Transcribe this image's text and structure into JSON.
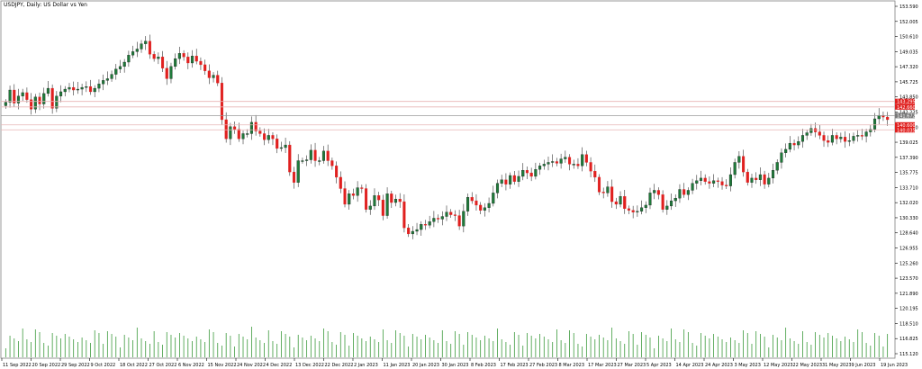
{
  "chart_data": {
    "type": "candlestick",
    "title": "USDJPY, Daily:  US Dollar vs Yen",
    "ylim": [
      115.5,
      154.2
    ],
    "y_ticks": [
      "153.590",
      "152.005",
      "150.610",
      "149.035",
      "147.320",
      "145.725",
      "143.850",
      "142.225",
      "140.610",
      "139.025",
      "137.390",
      "135.775",
      "133.710",
      "132.020",
      "130.330",
      "128.640",
      "126.955",
      "125.260",
      "123.570",
      "121.890",
      "120.195",
      "118.510",
      "116.825",
      "115.120"
    ],
    "x_ticks": [
      "11 Sep 2022",
      "20 Sep 2022",
      "29 Sep 2022",
      "9 Oct 2022",
      "18 Oct 2022",
      "27 Oct 2022",
      "6 Nov 2022",
      "15 Nov 2022",
      "24 Nov 2022",
      "4 Dec 2022",
      "13 Dec 2022",
      "22 Dec 2022",
      "2 Jan 2023",
      "11 Jan 2023",
      "20 Jan 2023",
      "30 Jan 2023",
      "8 Feb 2023",
      "17 Feb 2023",
      "27 Feb 2023",
      "8 Mar 2023",
      "17 Mar 2023",
      "27 Mar 2023",
      "5 Apr 2023",
      "14 Apr 2023",
      "24 Apr 2023",
      "3 May 2023",
      "12 May 2023",
      "22 May 2023",
      "31 May 2023",
      "9 Jun 2023",
      "19 Jun 2023"
    ],
    "horizontal_lines": [
      {
        "price": 143.295,
        "label": "143.295",
        "color": "#e8b3b3"
      },
      {
        "price": 142.66,
        "label": "142.660",
        "color": "#e8b3b3"
      },
      {
        "price": 141.672,
        "label": "141.672",
        "color": "#9a9a9a"
      },
      {
        "price": 140.6,
        "label": "140.600",
        "color": "#e8b3b3"
      },
      {
        "price": 140.035,
        "label": "140.035",
        "color": "#e8b3b3"
      }
    ],
    "series_close": [
      143.2,
      144.6,
      143.1,
      143.9,
      144.3,
      143.5,
      142.4,
      143.8,
      143.0,
      144.2,
      144.8,
      142.5,
      143.9,
      144.4,
      144.7,
      144.9,
      144.6,
      144.7,
      144.9,
      145.0,
      144.4,
      144.8,
      145.3,
      145.7,
      145.9,
      146.4,
      147.0,
      147.3,
      147.8,
      148.6,
      149.0,
      149.3,
      149.9,
      150.2,
      148.7,
      148.2,
      148.4,
      147.1,
      145.9,
      147.3,
      148.2,
      148.8,
      148.4,
      147.7,
      148.5,
      147.9,
      147.5,
      146.8,
      146.0,
      146.3,
      145.4,
      141.2,
      139.0,
      140.4,
      140.1,
      139.0,
      139.6,
      139.6,
      140.9,
      139.9,
      139.6,
      138.9,
      139.4,
      139.0,
      137.9,
      138.0,
      138.3,
      135.2,
      134.0,
      136.5,
      136.5,
      136.6,
      137.7,
      136.5,
      136.5,
      137.6,
      136.5,
      135.9,
      134.6,
      133.3,
      131.5,
      132.7,
      132.5,
      133.4,
      133.3,
      130.9,
      131.3,
      132.5,
      132.0,
      130.2,
      132.7,
      131.7,
      132.1,
      131.8,
      128.8,
      128.1,
      128.4,
      128.6,
      129.2,
      129.1,
      129.5,
      129.9,
      129.8,
      130.1,
      130.6,
      130.3,
      130.2,
      129.0,
      130.7,
      132.3,
      131.9,
      131.4,
      130.8,
      131.1,
      131.6,
      132.8,
      133.9,
      134.3,
      133.8,
      134.8,
      134.1,
      134.7,
      135.4,
      135.1,
      134.7,
      135.5,
      135.9,
      136.1,
      136.3,
      136.4,
      136.2,
      136.7,
      136.9,
      136.1,
      136.1,
      135.9,
      137.2,
      136.3,
      135.3,
      134.6,
      132.9,
      132.8,
      133.5,
      131.8,
      131.5,
      132.4,
      131.0,
      130.8,
      130.6,
      130.7,
      131.1,
      131.4,
      132.8,
      133.1,
      132.6,
      130.9,
      131.3,
      131.9,
      132.2,
      133.2,
      132.6,
      133.1,
      133.9,
      134.2,
      134.5,
      134.1,
      133.9,
      134.2,
      134.1,
      133.7,
      133.6,
      134.9,
      136.3,
      137.0,
      135.2,
      134.0,
      134.5,
      134.3,
      134.9,
      133.8,
      134.5,
      135.4,
      136.3,
      137.4,
      137.8,
      138.5,
      138.3,
      138.7,
      139.4,
      139.7,
      140.2,
      139.8,
      139.4,
      138.8,
      138.6,
      139.4,
      139.0,
      139.2,
      138.7,
      138.8,
      139.3,
      139.4,
      139.3,
      139.8,
      140.1,
      141.3,
      141.7,
      141.5,
      141.2
    ]
  },
  "colors": {
    "bull": "#1f7a3a",
    "bear": "#e0201f",
    "volume": "#3c9a3c",
    "grid": "#c8c8c8",
    "axis": "#000000",
    "label_bg_red": "#e0201f",
    "label_bg_gray": "#7a7a7a"
  }
}
